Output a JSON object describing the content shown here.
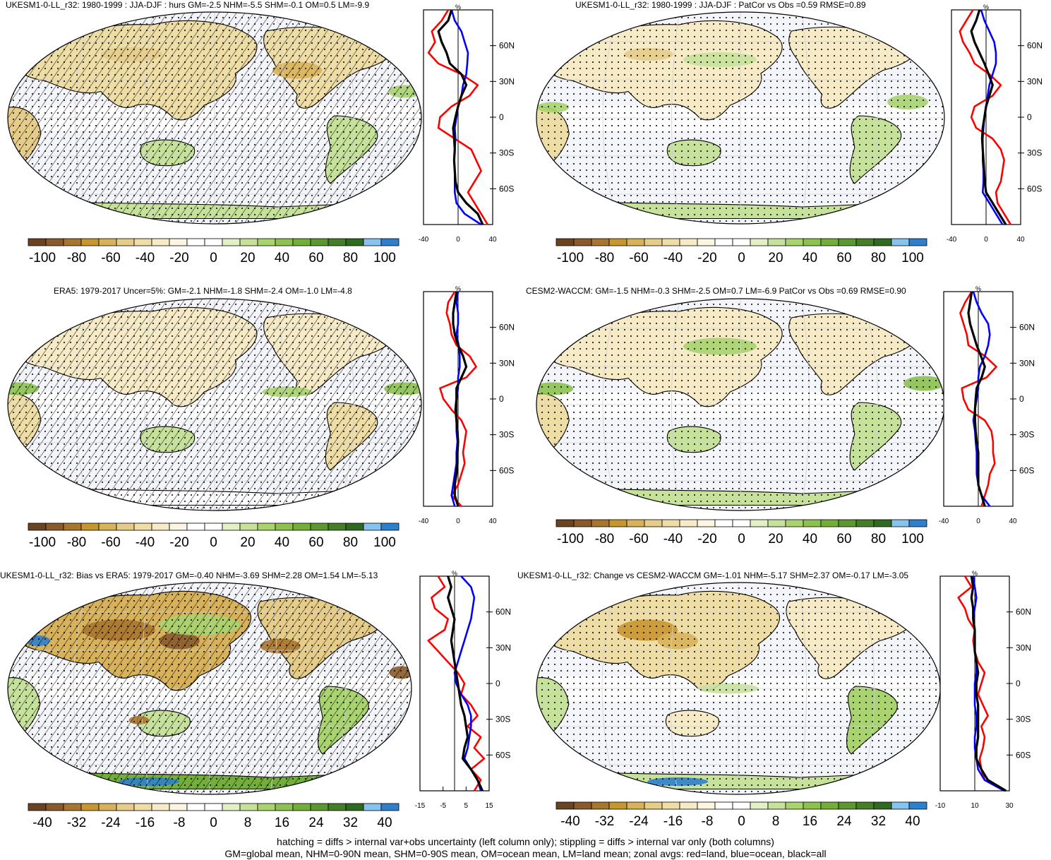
{
  "panels": [
    {
      "id": "p1",
      "title": "UKESM1-0-LL_r32: 1980-1999 : JJA-DJF : hurs GM=-2.5 NHM=-5.5 SHM=-0.1 OM=0.5 LM=-9.9",
      "hatching": true,
      "colorbar_labels": [
        "-100",
        "-80",
        "-60",
        "-40",
        "-20",
        "0",
        "20",
        "40",
        "60",
        "80",
        "100"
      ],
      "zonal": {
        "unit": "%",
        "x_ticks": [
          "-40",
          "0",
          "40"
        ],
        "lat_labels": [
          "60N",
          "30N",
          "0",
          "30S",
          "60S"
        ]
      }
    },
    {
      "id": "p2",
      "title": "UKESM1-0-LL_r32: 1980-1999 : JJA-DJF : PatCor vs Obs =0.59 RMSE=0.89",
      "hatching": false,
      "colorbar_labels": [
        "-100",
        "-80",
        "-60",
        "-40",
        "-20",
        "0",
        "20",
        "40",
        "60",
        "80",
        "100"
      ],
      "zonal": {
        "unit": "%",
        "x_ticks": [
          "-40",
          "0",
          "40"
        ],
        "lat_labels": [
          "60N",
          "30N",
          "0",
          "30S",
          "60S"
        ]
      }
    },
    {
      "id": "p3",
      "title": "ERA5: 1979-2017 Uncer=5%: GM=-2.1 NHM=-1.8 SHM=-2.4 OM=-1.0 LM=-4.8",
      "hatching": true,
      "colorbar_labels": [
        "-100",
        "-80",
        "-60",
        "-40",
        "-20",
        "0",
        "20",
        "40",
        "60",
        "80",
        "100"
      ],
      "zonal": {
        "unit": "%",
        "x_ticks": [
          "-40",
          "0",
          "40"
        ],
        "lat_labels": [
          "60N",
          "30N",
          "0",
          "30S",
          "60S"
        ]
      }
    },
    {
      "id": "p4",
      "title": "CESM2-WACCM: GM=-1.5 NHM=-0.3 SHM=-2.5 OM=0.7 LM=-6.9 PatCor vs Obs =0.69 RMSE=0.90",
      "hatching": false,
      "colorbar_labels": [
        "-100",
        "-80",
        "-60",
        "-40",
        "-20",
        "0",
        "20",
        "40",
        "60",
        "80",
        "100"
      ],
      "zonal": {
        "unit": "%",
        "x_ticks": [
          "-40",
          "0",
          "40"
        ],
        "lat_labels": [
          "60N",
          "30N",
          "0",
          "30S",
          "60S"
        ]
      }
    },
    {
      "id": "p5",
      "title": "UKESM1-0-LL_r32: Bias vs ERA5: 1979-2017 GM=-0.40 NHM=-3.69 SHM=2.28 OM=1.54 LM=-5.13",
      "hatching": true,
      "colorbar_labels": [
        "-40",
        "-32",
        "-24",
        "-16",
        "-8",
        "0",
        "8",
        "16",
        "24",
        "32",
        "40"
      ],
      "zonal": {
        "unit": "%",
        "x_ticks": [
          "-15",
          "-5",
          "5",
          "15"
        ],
        "lat_labels": [
          "60N",
          "30N",
          "0",
          "30S",
          "60S"
        ]
      }
    },
    {
      "id": "p6",
      "title": "UKESM1-0-LL_r32: Change vs CESM2-WACCM GM=-1.01 NHM=-5.17 SHM=2.37 OM=-0.17 LM=-3.05",
      "hatching": false,
      "colorbar_labels": [
        "-40",
        "-32",
        "-24",
        "-16",
        "-8",
        "0",
        "8",
        "16",
        "24",
        "32",
        "40"
      ],
      "zonal": {
        "unit": "%",
        "x_ticks": [
          "-10",
          "10",
          "30"
        ],
        "lat_labels": [
          "60N",
          "30N",
          "0",
          "30S",
          "60S"
        ]
      }
    }
  ],
  "colorbar_colors": [
    "#6b4321",
    "#8a5a2b",
    "#a8752e",
    "#c8962f",
    "#d8b25a",
    "#e6cc89",
    "#efdda6",
    "#f6ebc6",
    "#fbf5e2",
    "#ffffff",
    "#ffffff",
    "#e3f0c6",
    "#c6e29a",
    "#a8d36f",
    "#8cc14f",
    "#73ae3b",
    "#5b9830",
    "#447f28",
    "#2f6a21",
    "#86c3ef",
    "#2f80cc"
  ],
  "zonal_line_colors": {
    "land": "#ff0000",
    "ocean": "#0000ff",
    "all": "#000000"
  },
  "footer": {
    "line1": "hatching = diffs > internal var+obs uncertainty (left column only); stippling = diffs > internal var only (both columns)",
    "line2": "GM=global mean, NHM=0-90N mean, SHM=0-90S mean, OM=ocean mean, LM=land mean; zonal avgs: red=land, blue=ocean, black=all"
  }
}
